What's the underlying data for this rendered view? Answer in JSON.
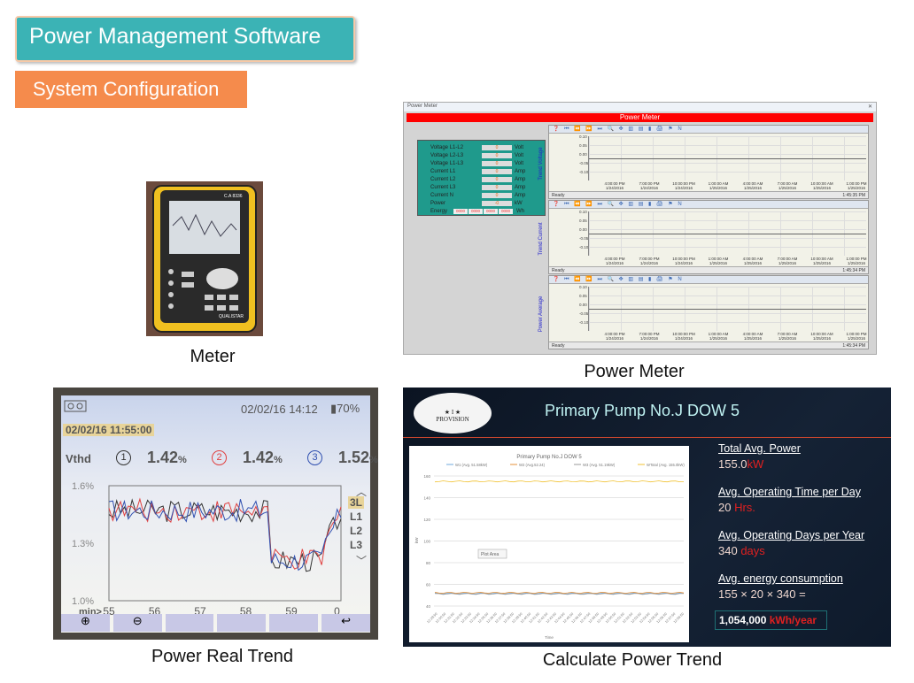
{
  "header": {
    "title": "Power Management Software",
    "section": "System Configuration"
  },
  "captions": {
    "meter": "Meter",
    "power_meter": "Power Meter",
    "real_trend": "Power Real Trend",
    "calc_trend": "Calculate Power Trend"
  },
  "meter_device": {
    "brand": "C.A 8336",
    "model": "QUALISTAR"
  },
  "power_meter": {
    "window_title": "Power Meter",
    "banner": "Power Meter",
    "fields": [
      {
        "label": "Voltage L1-L2",
        "value": "0",
        "unit": "Volt"
      },
      {
        "label": "Voltage L2-L3",
        "value": "0",
        "unit": "Volt"
      },
      {
        "label": "Voltage L1-L3",
        "value": "0",
        "unit": "Volt"
      },
      {
        "label": "Current L1",
        "value": "0",
        "unit": "Amp"
      },
      {
        "label": "Current L2",
        "value": "0",
        "unit": "Amp"
      },
      {
        "label": "Current L3",
        "value": "0",
        "unit": "Amp"
      },
      {
        "label": "Current N",
        "value": "0",
        "unit": "Amp"
      },
      {
        "label": "Power",
        "value": "-0",
        "unit": "kW"
      }
    ],
    "energy": {
      "label": "Energy",
      "values": [
        "0000",
        "0000",
        "0000",
        "0000"
      ],
      "unit": "Wh"
    },
    "trends": [
      {
        "label": "Trend Voltage",
        "status": "Ready",
        "time": "1:45:35 PM"
      },
      {
        "label": "Trend Current",
        "status": "Ready",
        "time": "1:45:34 PM"
      },
      {
        "label": "Power Average",
        "status": "Ready",
        "time": "1:45:34 PM"
      }
    ],
    "y_ticks": [
      "0.10",
      "0.05",
      "0.00",
      "-0.05",
      "-0.10"
    ],
    "x_ticks": [
      [
        "4:00:00 PM",
        "1/24/2016"
      ],
      [
        "7:00:00 PM",
        "1/24/2016"
      ],
      [
        "10:00:00 PM",
        "1/24/2016"
      ],
      [
        "1:00:00 AM",
        "1/25/2016"
      ],
      [
        "4:00:00 AM",
        "1/25/2016"
      ],
      [
        "7:00:00 AM",
        "1/25/2016"
      ],
      [
        "10:00:00 AM",
        "1/25/2016"
      ],
      [
        "1:00:00 PM",
        "1/25/2016"
      ]
    ]
  },
  "real_trend": {
    "datetime": "02/02/16  14:12",
    "battery": "70%",
    "cursor_time": "02/02/16  11:55:00",
    "measure": "Vthd",
    "phases": [
      {
        "id": "1",
        "value": "1.42",
        "unit": "%",
        "color": "#333333"
      },
      {
        "id": "2",
        "value": "1.42",
        "unit": "%",
        "color": "#e04040"
      },
      {
        "id": "3",
        "value": "1.52",
        "unit": "%",
        "color": "#3050b0"
      }
    ],
    "y_ticks": [
      "1.6%",
      "1.3%",
      "1.0%"
    ],
    "x_label": "min>",
    "x_ticks": [
      "55",
      "56",
      "57",
      "58",
      "59",
      "0"
    ],
    "side_menu": [
      "3L",
      "L1",
      "L2",
      "L3"
    ]
  },
  "calc": {
    "logo_text": "INDUSTRIAL PROVISION",
    "title": "Primary Pump No.J DOW 5",
    "chart_data": {
      "type": "line",
      "title": "Primary Pump No.J DOW 5",
      "ylabel": "kW",
      "xlabel": "Time",
      "ylim": [
        40,
        160
      ],
      "y_ticks": [
        "160",
        "140",
        "120",
        "100",
        "80",
        "60",
        "40"
      ],
      "x_ticks": [
        "12:29:50",
        "12:30:50",
        "12:31:50",
        "12:32:50",
        "12:33:50",
        "12:34:50",
        "12:35:50",
        "12:36:50",
        "12:37:50",
        "12:38:50",
        "12:39:50",
        "12:40:50",
        "12:41:50",
        "12:42:50",
        "12:43:50",
        "12:44:50",
        "12:45:50",
        "12:46:50",
        "12:47:50",
        "12:48:50",
        "12:49:50",
        "12:50:50",
        "12:51:50",
        "12:52:50",
        "12:53:50",
        "12:54:50",
        "12:55:50",
        "12:56:50",
        "12:57:50",
        "12:58:50"
      ],
      "series": [
        {
          "name": "W1 (Avg. 51.58kW)",
          "color": "#6fa8dc",
          "value": 51.58
        },
        {
          "name": "W2 (Avg.52.24)",
          "color": "#e69138",
          "value": 52.24
        },
        {
          "name": "W3 (Avg. 51.19kW)",
          "color": "#999999",
          "value": 51.19
        },
        {
          "name": "WTotal (Avg. 155.0kW)",
          "color": "#f1c232",
          "value": 155.0
        }
      ],
      "tooltip": "Plot Area"
    },
    "items": [
      {
        "title": "Total Avg. Power",
        "value": "155.0",
        "unit": "kW"
      },
      {
        "title": "Avg. Operating Time per Day",
        "value": "20",
        "unit": " Hrs."
      },
      {
        "title": "Avg. Operating Days per Year",
        "value": "340",
        "unit": " days"
      },
      {
        "title": "Avg. energy consumption",
        "value": "155 × 20 × 340 ="
      }
    ],
    "result": {
      "value": "1,054,000",
      "unit": " kWh/year"
    }
  }
}
